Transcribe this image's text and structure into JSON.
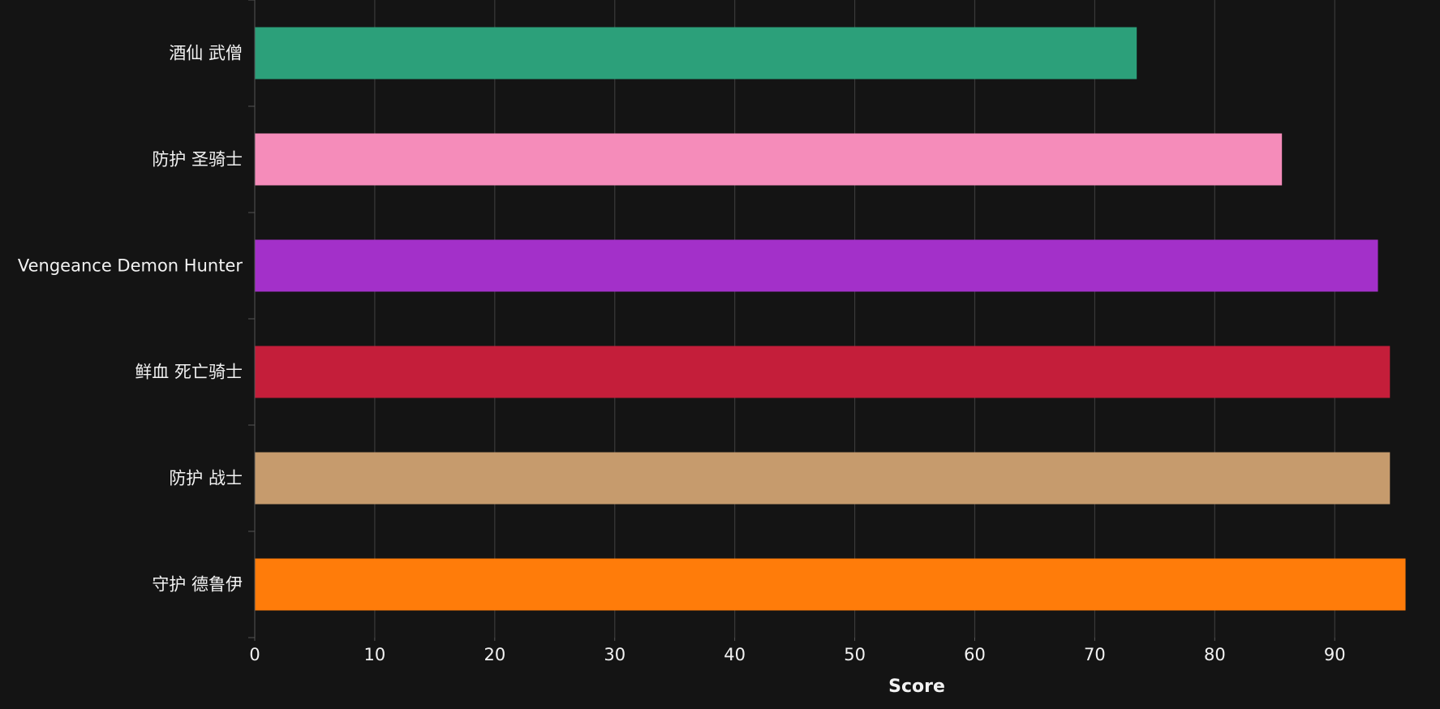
{
  "chart_data": {
    "type": "bar",
    "orientation": "horizontal",
    "categories": [
      "酒仙 武僧",
      "防护 圣骑士",
      "Vengeance Demon Hunter",
      "鲜血 死亡骑士",
      "防护 战士",
      "守护 德鲁伊"
    ],
    "values": [
      73.5,
      85.6,
      93.6,
      94.6,
      94.6,
      95.9
    ],
    "colors": [
      "#2ca07a",
      "#f58cba",
      "#a330c9",
      "#c41e3a",
      "#c69b6d",
      "#ff7c0a"
    ],
    "xlabel": "Score",
    "ylabel": "",
    "xlim": [
      0,
      96
    ],
    "xticks": [
      0,
      10,
      20,
      30,
      40,
      50,
      60,
      70,
      80,
      90
    ],
    "grid": true,
    "background": "#141414",
    "grid_color": "#3a3a3a",
    "text_color": "#f2f2f2"
  }
}
